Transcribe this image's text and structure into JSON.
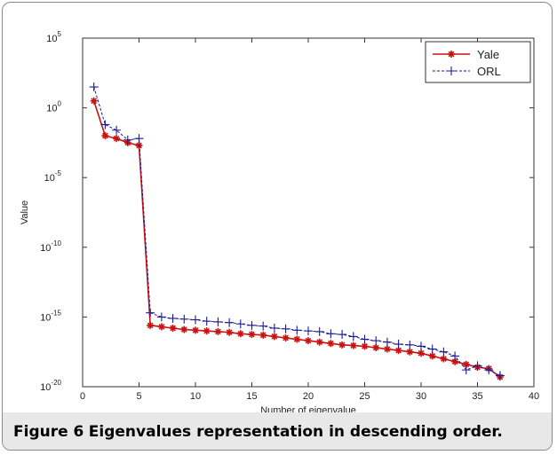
{
  "caption": {
    "label": "Figure 6",
    "text": "Eigenvalues representation in descending order."
  },
  "chart_data": {
    "type": "line",
    "xlabel": "Number of eigenvalue",
    "ylabel": "Value",
    "xlim": [
      0,
      40
    ],
    "ylim_exponent": [
      -20,
      5
    ],
    "yscale": "log",
    "x_ticks": [
      0,
      5,
      10,
      15,
      20,
      25,
      30,
      35,
      40
    ],
    "y_ticks": [
      {
        "base": "10",
        "exp": "5",
        "value": 5
      },
      {
        "base": "10",
        "exp": "0",
        "value": 0
      },
      {
        "base": "10",
        "exp": "-5",
        "value": -5
      },
      {
        "base": "10",
        "exp": "-10",
        "value": -10
      },
      {
        "base": "10",
        "exp": "-15",
        "value": -15
      },
      {
        "base": "10",
        "exp": "-20",
        "value": -20
      }
    ],
    "legend_position": "top-right",
    "x": [
      1,
      2,
      3,
      4,
      5,
      6,
      7,
      8,
      9,
      10,
      11,
      12,
      13,
      14,
      15,
      16,
      17,
      18,
      19,
      20,
      21,
      22,
      23,
      24,
      25,
      26,
      27,
      28,
      29,
      30,
      31,
      32,
      33,
      34,
      35,
      36,
      37
    ],
    "series": [
      {
        "name": "Yale",
        "color": "#cc1111",
        "style": "solid",
        "marker": "star",
        "log10_values": [
          0.5,
          -2.0,
          -2.2,
          -2.5,
          -2.7,
          -15.6,
          -15.7,
          -15.8,
          -15.9,
          -15.95,
          -16.0,
          -16.05,
          -16.1,
          -16.2,
          -16.25,
          -16.3,
          -16.4,
          -16.5,
          -16.6,
          -16.7,
          -16.8,
          -16.9,
          -17.0,
          -17.05,
          -17.1,
          -17.2,
          -17.3,
          -17.4,
          -17.5,
          -17.6,
          -17.8,
          -18.0,
          -18.2,
          -18.4,
          -18.6,
          -18.7,
          -19.3
        ]
      },
      {
        "name": "ORL",
        "color": "#1a1a99",
        "style": "dashed",
        "marker": "plus",
        "log10_values": [
          1.5,
          -1.2,
          -1.6,
          -2.3,
          -2.2,
          -14.7,
          -15.0,
          -15.1,
          -15.15,
          -15.2,
          -15.3,
          -15.35,
          -15.4,
          -15.5,
          -15.6,
          -15.65,
          -15.8,
          -15.85,
          -15.95,
          -16.0,
          -16.05,
          -16.2,
          -16.25,
          -16.4,
          -16.6,
          -16.7,
          -16.8,
          -16.95,
          -17.0,
          -17.1,
          -17.3,
          -17.5,
          -17.8,
          -18.8,
          -18.5,
          -18.8,
          -19.2
        ]
      }
    ]
  }
}
